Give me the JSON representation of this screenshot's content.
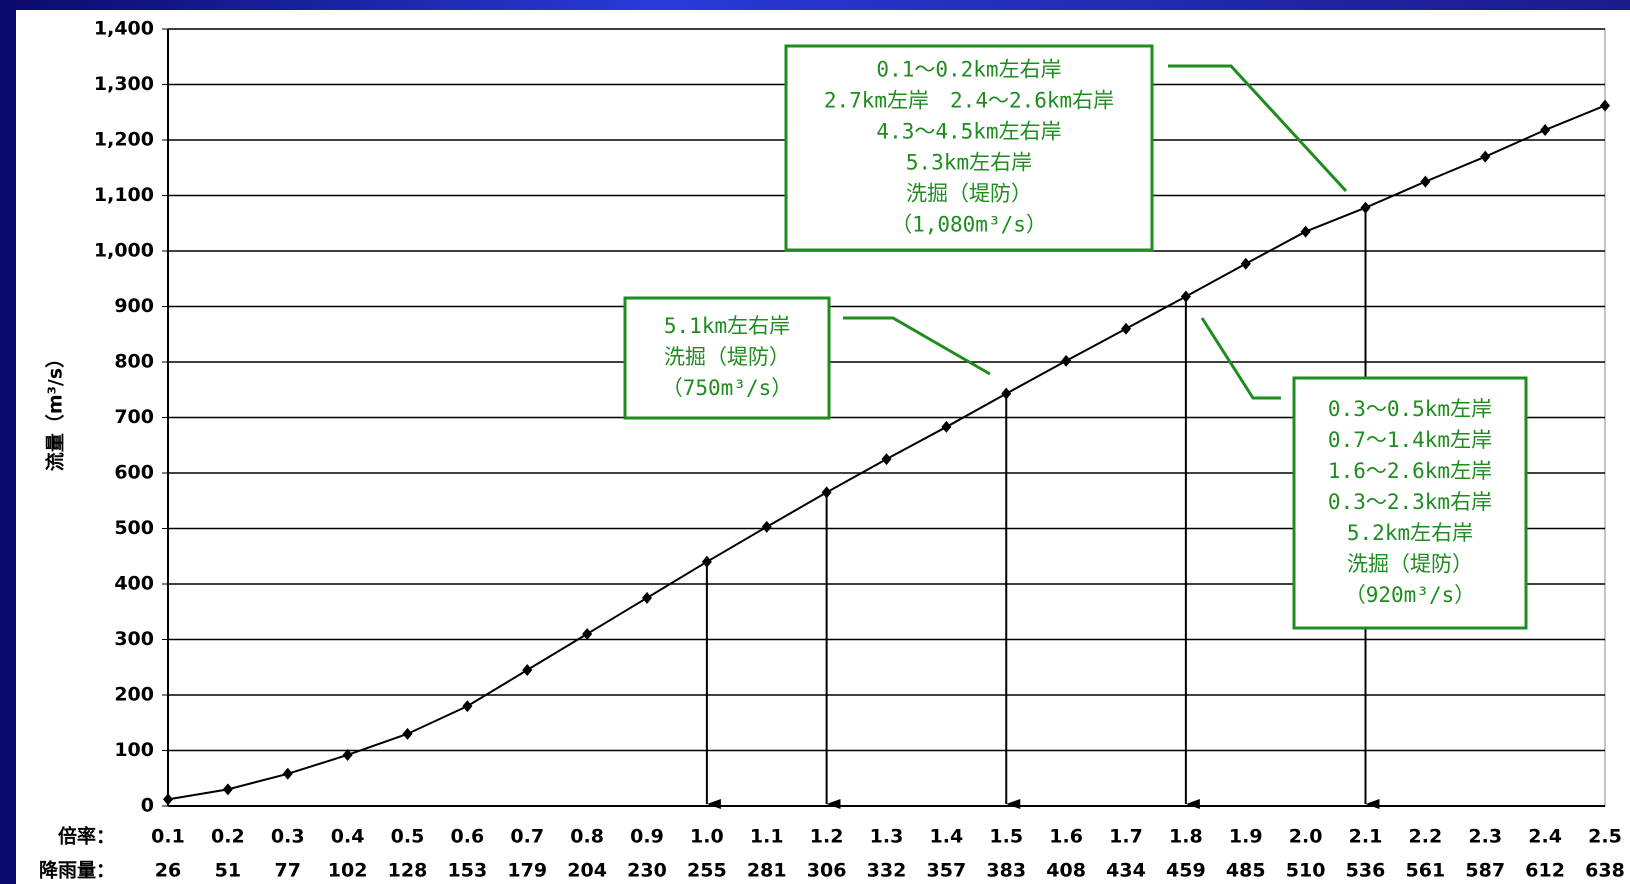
{
  "chart_data": {
    "type": "line",
    "y_label": "流量（m³/s）",
    "x_row_label": "倍率：",
    "rainfall_row_label": "降雨量：",
    "categories": [
      "0.1",
      "0.2",
      "0.3",
      "0.4",
      "0.5",
      "0.6",
      "0.7",
      "0.8",
      "0.9",
      "1.0",
      "1.1",
      "1.2",
      "1.3",
      "1.4",
      "1.5",
      "1.6",
      "1.7",
      "1.8",
      "1.9",
      "2.0",
      "2.1",
      "2.2",
      "2.3",
      "2.4",
      "2.5"
    ],
    "rainfall": [
      26,
      51,
      77,
      102,
      128,
      153,
      179,
      204,
      230,
      255,
      281,
      306,
      332,
      357,
      383,
      408,
      434,
      459,
      485,
      510,
      536,
      561,
      587,
      612,
      638
    ],
    "series": [
      {
        "color": "#000000",
        "values": [
          12,
          30,
          58,
          92,
          130,
          180,
          245,
          310,
          375,
          440,
          503,
          565,
          625,
          683,
          743,
          802,
          860,
          918,
          977,
          1035,
          1078,
          1125,
          1170,
          1218,
          1262
        ]
      }
    ],
    "ylim": [
      0,
      1400
    ],
    "yticks": [
      0,
      100,
      200,
      300,
      400,
      500,
      600,
      700,
      800,
      900,
      {
        "value": 1000,
        "label": "1,000"
      },
      {
        "value": 1100,
        "label": "1,100"
      },
      {
        "value": 1200,
        "label": "1,200"
      },
      {
        "value": 1300,
        "label": "1,300"
      },
      {
        "value": 1400,
        "label": "1,400"
      }
    ],
    "grid": true,
    "arrow_categories": [
      "1.0",
      "1.2",
      "1.5",
      "1.8",
      "2.1"
    ],
    "annotations": [
      {
        "lines": [
          "0.1～0.2km左右岸",
          "2.7km左岸　2.4～2.6km右岸",
          "4.3～4.5km左右岸",
          "5.3km左右岸",
          "洗掘（堤防）",
          "（1,080m³/s）"
        ],
        "color": "#1e8c1e"
      },
      {
        "lines": [
          "5.1km左右岸",
          "洗掘（堤防）",
          "（750m³/s）"
        ],
        "color": "#1e8c1e"
      },
      {
        "lines": [
          "0.3～0.5km左岸",
          "0.7～1.4km左岸",
          "1.6～2.6km左岸",
          "0.3～2.3km右岸",
          "5.2km左右岸",
          "洗掘（堤防）",
          "（920m³/s）"
        ],
        "color": "#1e8c1e"
      }
    ]
  }
}
